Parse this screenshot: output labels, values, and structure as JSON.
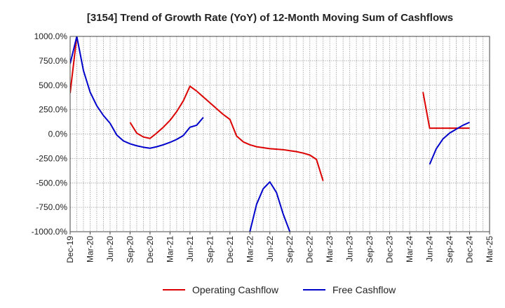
{
  "chart_data": {
    "type": "line",
    "title": "[3154]  Trend of Growth Rate (YoY) of 12-Month Moving Sum of Cashflows",
    "xlabel": "",
    "ylabel": "",
    "ylim": [
      -1000,
      1000
    ],
    "y_ticks": [
      1000,
      750,
      500,
      250,
      0,
      -250,
      -500,
      -750,
      -1000
    ],
    "y_tick_labels": [
      "1000.0%",
      "750.0%",
      "500.0%",
      "250.0%",
      "0.0%",
      "-250.0%",
      "-500.0%",
      "-750.0%",
      "-1000.0%"
    ],
    "x_ticks": [
      "2019-12",
      "2020-03",
      "2020-06",
      "2020-09",
      "2020-12",
      "2021-03",
      "2021-06",
      "2021-09",
      "2021-12",
      "2022-03",
      "2022-06",
      "2022-09",
      "2022-12",
      "2023-03",
      "2023-06",
      "2023-09",
      "2023-12",
      "2024-03",
      "2024-06",
      "2024-09",
      "2024-12",
      "2025-03"
    ],
    "x_tick_labels": [
      "Dec-19",
      "Mar-20",
      "Jun-20",
      "Sep-20",
      "Dec-20",
      "Mar-21",
      "Jun-21",
      "Sep-21",
      "Dec-21",
      "Mar-22",
      "Jun-22",
      "Sep-22",
      "Dec-22",
      "Mar-23",
      "Jun-23",
      "Sep-23",
      "Dec-23",
      "Mar-24",
      "Jun-24",
      "Sep-24",
      "Dec-24",
      "Mar-25"
    ],
    "grid": true,
    "legend_position": "bottom",
    "series": [
      {
        "name": "Operating Cashflow",
        "color": "#dd0000",
        "points": [
          [
            "2019-12",
            420
          ],
          [
            "2020-01",
            1000
          ],
          null,
          [
            "2020-09",
            120
          ],
          [
            "2020-10",
            10
          ],
          [
            "2020-11",
            -30
          ],
          [
            "2020-12",
            -45
          ],
          [
            "2021-01",
            10
          ],
          [
            "2021-02",
            70
          ],
          [
            "2021-03",
            140
          ],
          [
            "2021-04",
            230
          ],
          [
            "2021-05",
            340
          ],
          [
            "2021-06",
            490
          ],
          [
            "2021-07",
            440
          ],
          [
            "2021-08",
            380
          ],
          [
            "2021-09",
            320
          ],
          [
            "2021-10",
            260
          ],
          [
            "2021-11",
            200
          ],
          [
            "2021-12",
            150
          ],
          [
            "2022-01",
            -20
          ],
          [
            "2022-02",
            -80
          ],
          [
            "2022-03",
            -110
          ],
          [
            "2022-04",
            -130
          ],
          [
            "2022-05",
            -140
          ],
          [
            "2022-06",
            -150
          ],
          [
            "2022-07",
            -155
          ],
          [
            "2022-08",
            -160
          ],
          [
            "2022-09",
            -170
          ],
          [
            "2022-10",
            -180
          ],
          [
            "2022-11",
            -195
          ],
          [
            "2022-12",
            -215
          ],
          [
            "2023-01",
            -260
          ],
          [
            "2023-02",
            -480
          ],
          null,
          [
            "2024-05",
            430
          ],
          [
            "2024-06",
            60
          ],
          [
            "2024-07",
            60
          ],
          [
            "2024-08",
            60
          ],
          [
            "2024-09",
            60
          ],
          [
            "2024-10",
            60
          ],
          [
            "2024-11",
            60
          ],
          [
            "2024-12",
            60
          ]
        ]
      },
      {
        "name": "Free Cashflow",
        "color": "#0000cc",
        "points": [
          [
            "2019-12",
            720
          ],
          [
            "2020-01",
            1000
          ],
          [
            "2020-02",
            650
          ],
          [
            "2020-03",
            430
          ],
          [
            "2020-04",
            290
          ],
          [
            "2020-05",
            190
          ],
          [
            "2020-06",
            110
          ],
          [
            "2020-07",
            -10
          ],
          [
            "2020-08",
            -70
          ],
          [
            "2020-09",
            -100
          ],
          [
            "2020-10",
            -120
          ],
          [
            "2020-11",
            -135
          ],
          [
            "2020-12",
            -145
          ],
          [
            "2021-01",
            -130
          ],
          [
            "2021-02",
            -110
          ],
          [
            "2021-03",
            -85
          ],
          [
            "2021-04",
            -55
          ],
          [
            "2021-05",
            -15
          ],
          [
            "2021-06",
            70
          ],
          [
            "2021-07",
            90
          ],
          [
            "2021-08",
            170
          ],
          null,
          [
            "2022-03",
            -1000
          ],
          [
            "2022-04",
            -720
          ],
          [
            "2022-05",
            -560
          ],
          [
            "2022-06",
            -490
          ],
          [
            "2022-07",
            -600
          ],
          [
            "2022-08",
            -820
          ],
          [
            "2022-09",
            -1000
          ],
          null,
          [
            "2024-06",
            -310
          ],
          [
            "2024-07",
            -150
          ],
          [
            "2024-08",
            -50
          ],
          [
            "2024-09",
            10
          ],
          [
            "2024-10",
            50
          ],
          [
            "2024-11",
            90
          ],
          [
            "2024-12",
            120
          ]
        ]
      }
    ]
  }
}
